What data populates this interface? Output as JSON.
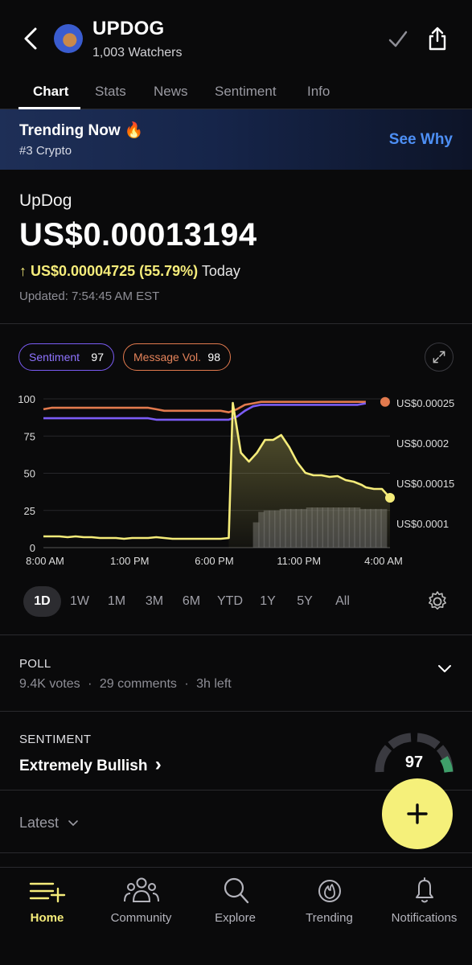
{
  "header": {
    "title": "UPDOG",
    "watchers": "1,003 Watchers",
    "icons": [
      "back-arrow",
      "avatar",
      "checkmark",
      "share"
    ]
  },
  "tabs": [
    "Chart",
    "Stats",
    "News",
    "Sentiment",
    "Info"
  ],
  "active_tab": "Chart",
  "banner": {
    "title": "Trending Now 🔥",
    "subtitle": "#3 Crypto",
    "action": "See Why"
  },
  "quote": {
    "name": "UpDog",
    "price": "US$0.00013194",
    "arrow": "↑",
    "change": "US$0.00004725 (55.79%)",
    "period": "Today",
    "updated": "Updated: 7:54:45 AM EST"
  },
  "indicators": {
    "sentiment_label": "Sentiment",
    "sentiment_value": "97",
    "message_label": "Message Vol.",
    "message_value": "98"
  },
  "colors": {
    "price_line": "#f5ec7a",
    "sentiment_line": "#7b5cf5",
    "message_line": "#e27a4e",
    "link": "#4d8ff5",
    "fab": "#f5f07a"
  },
  "chart_data": {
    "type": "line",
    "x_ticks": [
      "8:00 AM",
      "1:00 PM",
      "6:00 PM",
      "11:00 PM",
      "4:00 AM"
    ],
    "left_axis_ticks": [
      "100",
      "75",
      "50",
      "25",
      "0"
    ],
    "right_axis_ticks": [
      "US$0.00025",
      "US$0.0002",
      "US$0.00015",
      "US$0.0001"
    ],
    "left_ylim": [
      0,
      100
    ],
    "right_ylim": [
      7e-05,
      0.000255
    ],
    "grid": true,
    "series": [
      {
        "name": "Message Vol.",
        "axis": "left",
        "values": [
          [
            0,
            93
          ],
          [
            1,
            94
          ],
          [
            2,
            94
          ],
          [
            3,
            94
          ],
          [
            4,
            94
          ],
          [
            5,
            94
          ],
          [
            6,
            94
          ],
          [
            7,
            94
          ],
          [
            8,
            94
          ],
          [
            9,
            94
          ],
          [
            10,
            94
          ],
          [
            11,
            94
          ],
          [
            12,
            94
          ],
          [
            13,
            94
          ],
          [
            14,
            93
          ],
          [
            15,
            92
          ],
          [
            16,
            92
          ],
          [
            17,
            92
          ],
          [
            18,
            92
          ],
          [
            19,
            92
          ],
          [
            20,
            92
          ],
          [
            21,
            92
          ],
          [
            22,
            92
          ],
          [
            23,
            91
          ],
          [
            24,
            93
          ],
          [
            25,
            96
          ],
          [
            26,
            97
          ],
          [
            27,
            98
          ],
          [
            28,
            98
          ],
          [
            29,
            98
          ],
          [
            30,
            98
          ],
          [
            31,
            98
          ],
          [
            32,
            98
          ],
          [
            33,
            98
          ],
          [
            34,
            98
          ],
          [
            35,
            98
          ],
          [
            36,
            98
          ],
          [
            37,
            98
          ],
          [
            38,
            98
          ],
          [
            39,
            98
          ],
          [
            40,
            98
          ]
        ]
      },
      {
        "name": "Sentiment",
        "axis": "left",
        "values": [
          [
            0,
            87
          ],
          [
            1,
            87
          ],
          [
            2,
            87
          ],
          [
            3,
            87
          ],
          [
            4,
            87
          ],
          [
            5,
            87
          ],
          [
            6,
            87
          ],
          [
            7,
            87
          ],
          [
            8,
            87
          ],
          [
            9,
            87
          ],
          [
            10,
            87
          ],
          [
            11,
            87
          ],
          [
            12,
            87
          ],
          [
            13,
            87
          ],
          [
            14,
            86
          ],
          [
            15,
            86
          ],
          [
            16,
            86
          ],
          [
            17,
            86
          ],
          [
            18,
            86
          ],
          [
            19,
            86
          ],
          [
            20,
            86
          ],
          [
            21,
            86
          ],
          [
            22,
            86
          ],
          [
            23,
            86
          ],
          [
            24,
            88
          ],
          [
            25,
            92
          ],
          [
            26,
            95
          ],
          [
            27,
            96
          ],
          [
            28,
            96
          ],
          [
            29,
            96
          ],
          [
            30,
            96
          ],
          [
            31,
            96
          ],
          [
            32,
            96
          ],
          [
            33,
            96
          ],
          [
            34,
            96
          ],
          [
            35,
            96
          ],
          [
            36,
            96
          ],
          [
            37,
            96
          ],
          [
            38,
            96
          ],
          [
            39,
            96
          ],
          [
            40,
            97
          ]
        ]
      },
      {
        "name": "Price",
        "axis": "right",
        "values": [
          [
            0,
            8.4e-05
          ],
          [
            1,
            8.4e-05
          ],
          [
            2,
            8.4e-05
          ],
          [
            3,
            8.3e-05
          ],
          [
            4,
            8.4e-05
          ],
          [
            5,
            8.3e-05
          ],
          [
            6,
            8.3e-05
          ],
          [
            7,
            8.2e-05
          ],
          [
            8,
            8.2e-05
          ],
          [
            9,
            8.2e-05
          ],
          [
            10,
            8.1e-05
          ],
          [
            11,
            8.2e-05
          ],
          [
            12,
            8.2e-05
          ],
          [
            13,
            8.2e-05
          ],
          [
            14,
            8.3e-05
          ],
          [
            15,
            8.2e-05
          ],
          [
            16,
            8.1e-05
          ],
          [
            17,
            8.1e-05
          ],
          [
            18,
            8.1e-05
          ],
          [
            19,
            8.1e-05
          ],
          [
            20,
            8.1e-05
          ],
          [
            21,
            8.1e-05
          ],
          [
            22,
            8.1e-05
          ],
          [
            23,
            8.2e-05
          ],
          [
            23.5,
            0.00025
          ],
          [
            24.5,
            0.000188
          ],
          [
            25.5,
            0.000177
          ],
          [
            26.5,
            0.000188
          ],
          [
            27.5,
            0.000204
          ],
          [
            28.5,
            0.000204
          ],
          [
            29.5,
            0.00021
          ],
          [
            30.5,
            0.000195
          ],
          [
            31.5,
            0.000176
          ],
          [
            32.5,
            0.000163
          ],
          [
            33.5,
            0.00016
          ],
          [
            34.5,
            0.00016
          ],
          [
            35.5,
            0.000158
          ],
          [
            36.5,
            0.000159
          ],
          [
            37.5,
            0.000154
          ],
          [
            38.5,
            0.000152
          ],
          [
            39.5,
            0.000148
          ],
          [
            40,
            0.000145
          ],
          [
            41,
            0.000143
          ],
          [
            42,
            0.000143
          ],
          [
            43,
            0.000132
          ]
        ]
      }
    ],
    "volume_bars": [
      0.17,
      0.24,
      0.25,
      0.25,
      0.25,
      0.26,
      0.26,
      0.26,
      0.26,
      0.26,
      0.27,
      0.27,
      0.27,
      0.27,
      0.27,
      0.27,
      0.27,
      0.27,
      0.27,
      0.27,
      0.26,
      0.26,
      0.26,
      0.26,
      0.26
    ]
  },
  "ranges": [
    "1D",
    "1W",
    "1M",
    "3M",
    "6M",
    "YTD",
    "1Y",
    "5Y",
    "All"
  ],
  "active_range": "1D",
  "poll": {
    "label": "POLL",
    "votes": "9.4K votes",
    "comments": "29 comments",
    "time_left": "3h left",
    "sep": "·"
  },
  "sentiment": {
    "label": "SENTIMENT",
    "value": "Extremely Bullish",
    "chevron": "›",
    "score": "97"
  },
  "feed": {
    "label": "Latest"
  },
  "fab": {
    "icon": "plus-icon"
  },
  "nav": [
    {
      "label": "Home",
      "icon": "home-icon",
      "active": true
    },
    {
      "label": "Community",
      "icon": "community-icon",
      "active": false
    },
    {
      "label": "Explore",
      "icon": "search-icon",
      "active": false
    },
    {
      "label": "Trending",
      "icon": "flame-icon",
      "active": false
    },
    {
      "label": "Notifications",
      "icon": "bell-icon",
      "active": false
    }
  ]
}
